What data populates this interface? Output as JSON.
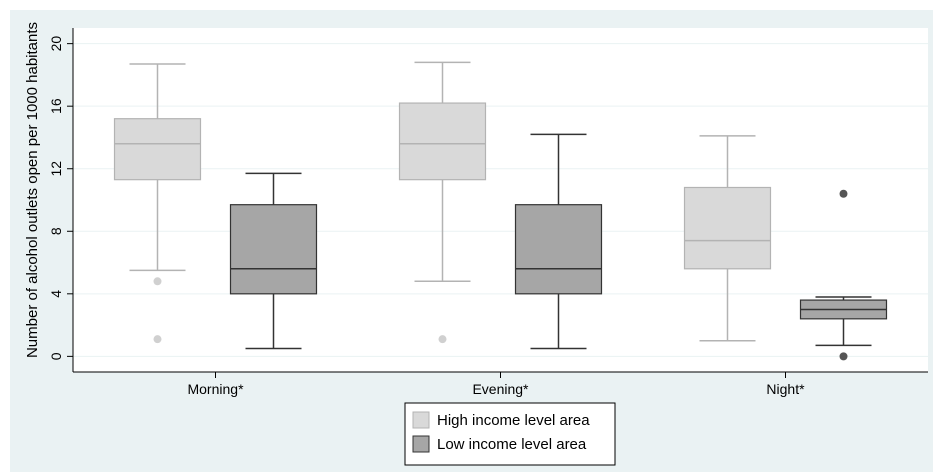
{
  "chart_data": {
    "type": "box",
    "title": "",
    "xlabel": "",
    "ylabel": "Number of alcohol outlets open per 1000 habitants",
    "ylim": [
      -1,
      21
    ],
    "yticks": [
      0,
      4,
      8,
      12,
      16,
      20
    ],
    "grid": true,
    "legend_position": "bottom-center",
    "categories": [
      "Morning*",
      "Evening*",
      "Night*"
    ],
    "series": [
      {
        "name": "High income level area",
        "color": "#d9d9d9",
        "stroke": "#b3b3b3",
        "boxes": [
          {
            "min": 5.5,
            "q1": 11.3,
            "median": 13.6,
            "q3": 15.2,
            "max": 18.7,
            "outliers": [
              4.8,
              1.1
            ]
          },
          {
            "min": 4.8,
            "q1": 11.3,
            "median": 13.6,
            "q3": 16.2,
            "max": 18.8,
            "outliers": [
              1.1
            ]
          },
          {
            "min": 1.0,
            "q1": 5.6,
            "median": 7.4,
            "q3": 10.8,
            "max": 14.1,
            "outliers": []
          }
        ]
      },
      {
        "name": "Low income level area",
        "color": "#a6a6a6",
        "stroke": "#333333",
        "boxes": [
          {
            "min": 0.5,
            "q1": 4.0,
            "median": 5.6,
            "q3": 9.7,
            "max": 11.7,
            "outliers": []
          },
          {
            "min": 0.5,
            "q1": 4.0,
            "median": 5.6,
            "q3": 9.7,
            "max": 14.2,
            "outliers": []
          },
          {
            "min": 0.7,
            "q1": 2.4,
            "median": 3.0,
            "q3": 3.6,
            "max": 3.8,
            "outliers": [
              10.4,
              0.0
            ]
          }
        ]
      }
    ]
  }
}
